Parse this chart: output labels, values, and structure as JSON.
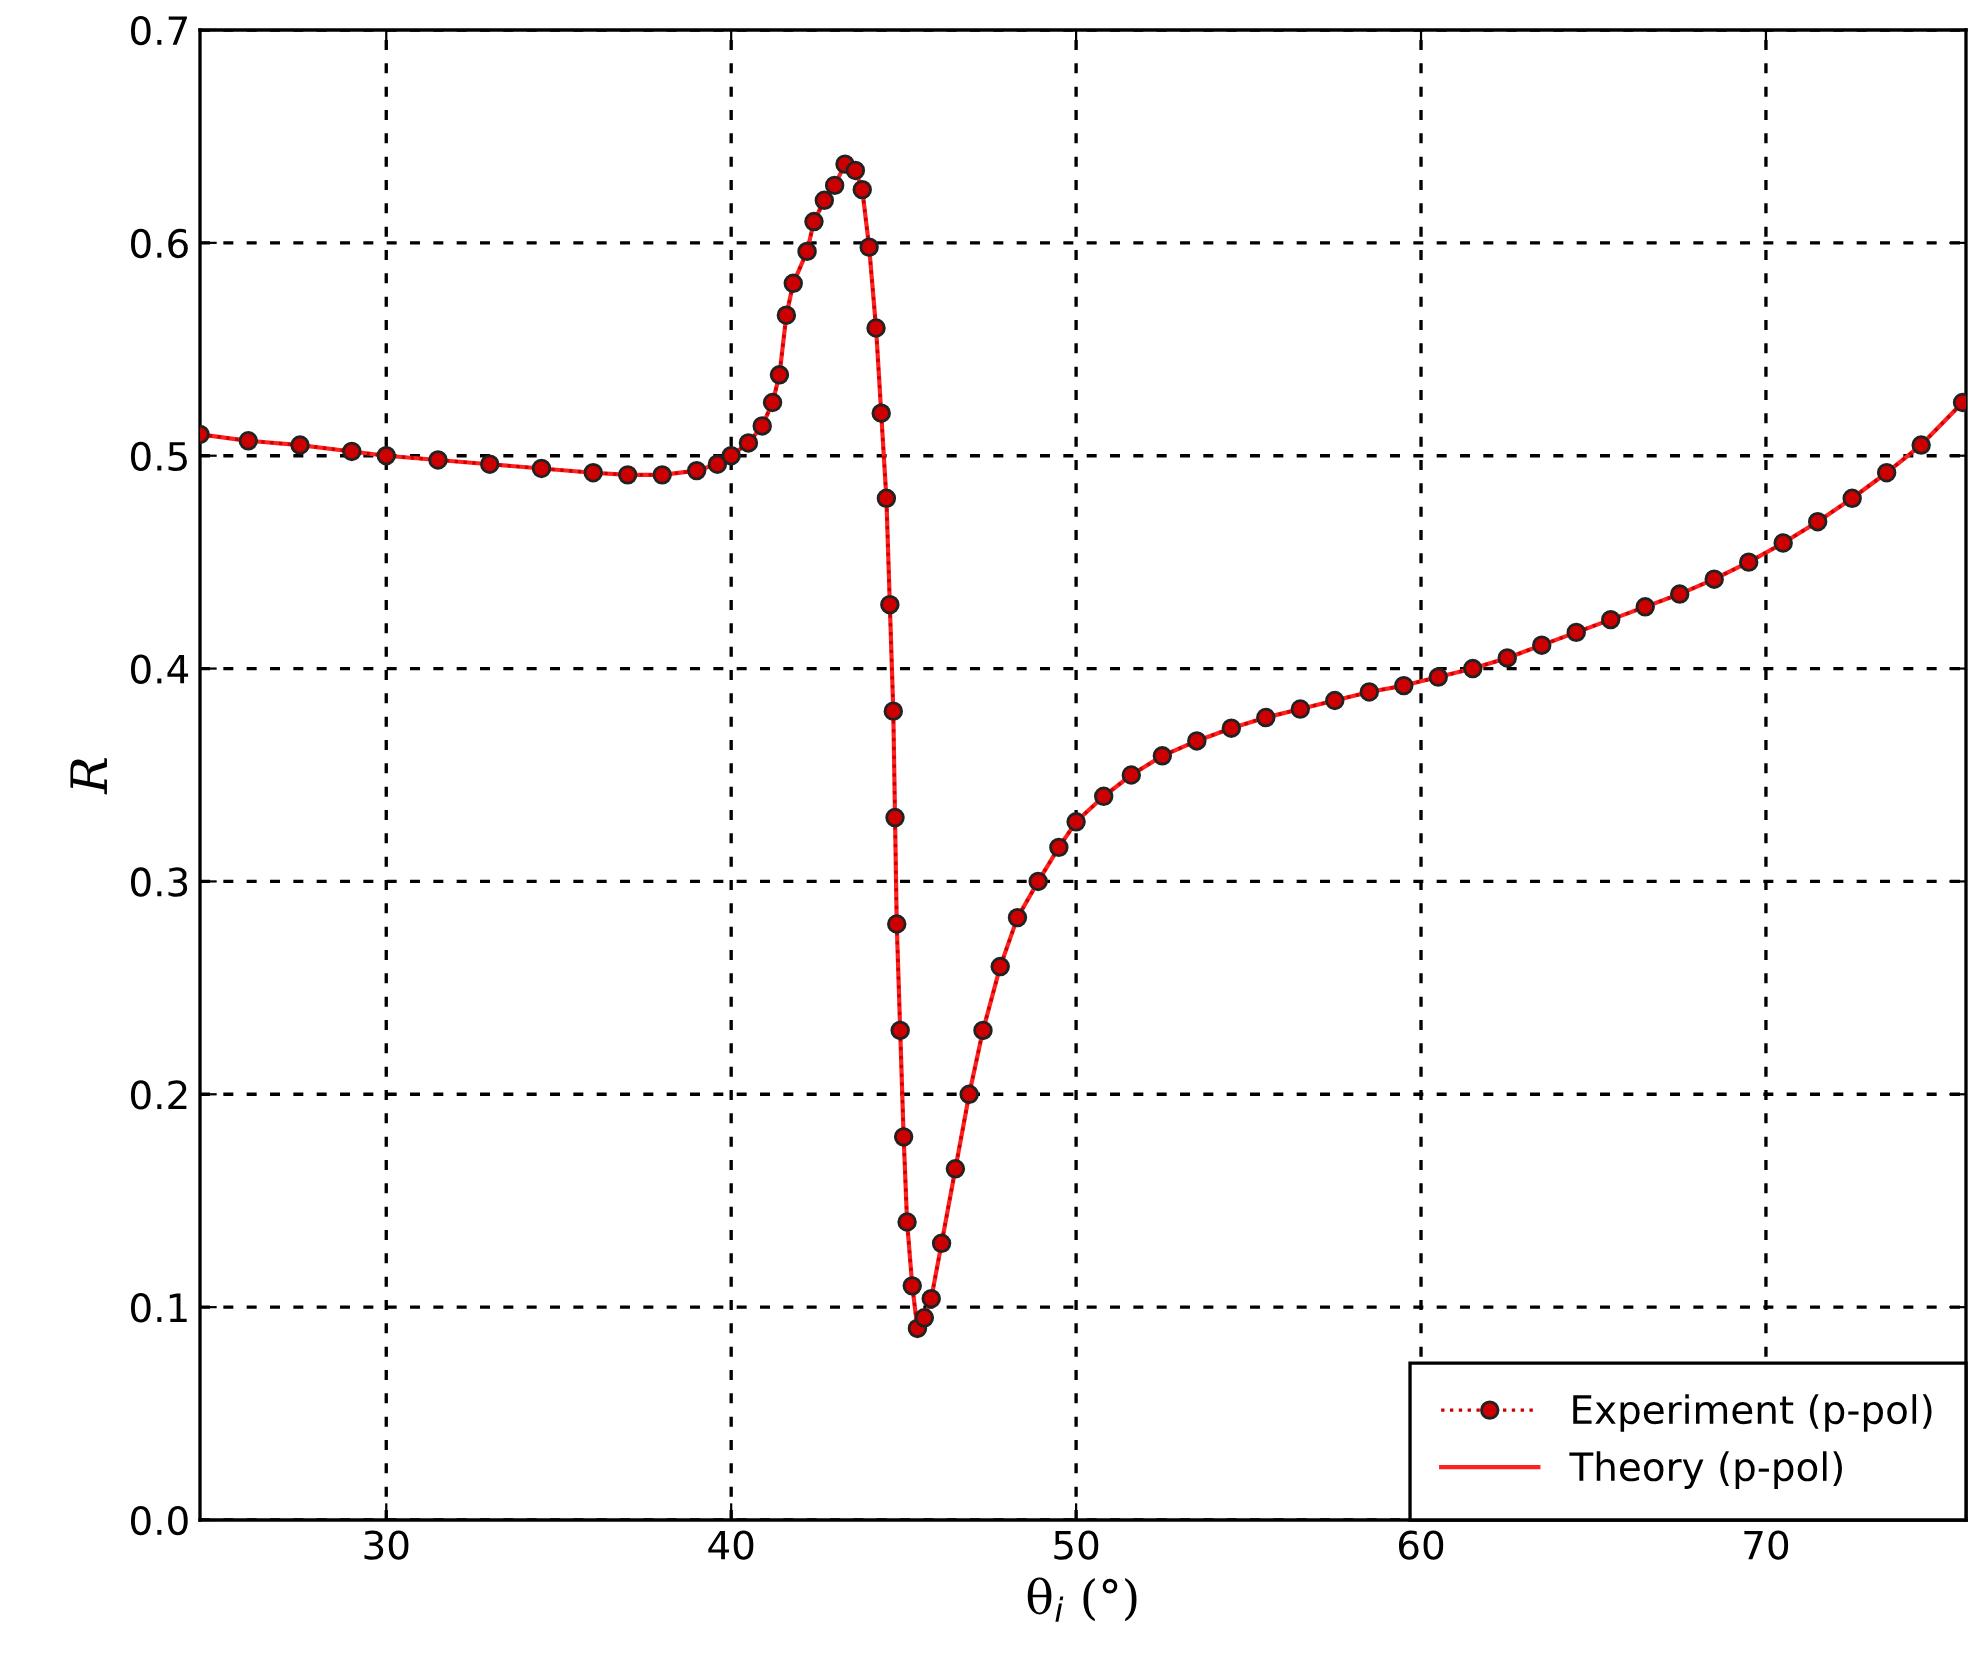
{
  "chart_data": {
    "type": "line",
    "xlabel": "θ$_{i}$ (°)",
    "ylabel": "R",
    "xlim": [
      24.6,
      75.8
    ],
    "xticks": [
      30,
      40,
      50,
      60,
      70
    ],
    "ylim": [
      0,
      0.7
    ],
    "yticks": [
      {
        "value": 0,
        "label": "0.0"
      },
      {
        "value": 0.1,
        "label": "0.1"
      },
      {
        "value": 0.2,
        "label": "0.2"
      },
      {
        "value": 0.3,
        "label": "0.3"
      },
      {
        "value": 0.4,
        "label": "0.4"
      },
      {
        "value": 0.5,
        "label": "0.5"
      },
      {
        "value": 0.6,
        "label": "0.6"
      },
      {
        "value": 0.7,
        "label": "0.7"
      }
    ],
    "grid": true,
    "legend": "bottom right",
    "x": [
      24.6,
      26,
      27.5,
      29,
      30,
      31.5,
      33,
      34.5,
      36,
      37,
      38,
      39,
      39.6,
      40,
      40.5,
      40.9,
      41.2,
      41.4,
      41.6,
      41.8,
      42.2,
      42.4,
      42.7,
      43.0,
      43.3,
      43.6,
      43.8,
      44.0,
      44.2,
      44.35,
      44.5,
      44.6,
      44.7,
      44.75,
      44.8,
      44.9,
      45.0,
      45.1,
      45.25,
      45.4,
      45.6,
      45.8,
      46.1,
      46.5,
      46.9,
      47.3,
      47.8,
      48.3,
      48.9,
      49.5,
      50,
      50.8,
      51.6,
      52.5,
      53.5,
      54.5,
      55.5,
      56.5,
      57.5,
      58.5,
      59.5,
      60.5,
      61.5,
      62.5,
      63.5,
      64.5,
      65.5,
      66.5,
      67.5,
      68.5,
      69.5,
      70.5,
      71.5,
      72.5,
      73.5,
      74.5,
      75.7
    ],
    "series": [
      {
        "name": "Experiment (p-pol)",
        "type": "line",
        "color": "#cc0000",
        "marker": "circle",
        "line_style": "dotted",
        "values": [
          0.51,
          0.507,
          0.505,
          0.502,
          0.5,
          0.498,
          0.496,
          0.494,
          0.492,
          0.491,
          0.491,
          0.493,
          0.496,
          0.5,
          0.506,
          0.514,
          0.525,
          0.538,
          0.566,
          0.581,
          0.596,
          0.61,
          0.62,
          0.627,
          0.637,
          0.634,
          0.625,
          0.598,
          0.56,
          0.52,
          0.48,
          0.43,
          0.38,
          0.33,
          0.28,
          0.23,
          0.18,
          0.14,
          0.11,
          0.09,
          0.095,
          0.104,
          0.13,
          0.165,
          0.2,
          0.23,
          0.26,
          0.283,
          0.3,
          0.316,
          0.328,
          0.34,
          0.35,
          0.359,
          0.366,
          0.372,
          0.377,
          0.381,
          0.385,
          0.389,
          0.392,
          0.396,
          0.4,
          0.405,
          0.411,
          0.417,
          0.423,
          0.429,
          0.435,
          0.442,
          0.45,
          0.459,
          0.469,
          0.48,
          0.492,
          0.505,
          0.525
        ]
      },
      {
        "name": "Theory (p-pol)",
        "type": "line",
        "color": "#ff2020",
        "line_style": "solid",
        "values": [
          0.51,
          0.507,
          0.505,
          0.502,
          0.5,
          0.498,
          0.496,
          0.494,
          0.492,
          0.491,
          0.491,
          0.493,
          0.496,
          0.5,
          0.506,
          0.514,
          0.525,
          0.538,
          0.566,
          0.581,
          0.596,
          0.61,
          0.62,
          0.627,
          0.637,
          0.634,
          0.625,
          0.598,
          0.56,
          0.52,
          0.48,
          0.43,
          0.38,
          0.33,
          0.28,
          0.23,
          0.18,
          0.14,
          0.11,
          0.09,
          0.095,
          0.104,
          0.13,
          0.165,
          0.2,
          0.23,
          0.26,
          0.283,
          0.3,
          0.316,
          0.328,
          0.34,
          0.35,
          0.359,
          0.366,
          0.372,
          0.377,
          0.381,
          0.385,
          0.389,
          0.392,
          0.396,
          0.4,
          0.405,
          0.411,
          0.417,
          0.423,
          0.429,
          0.435,
          0.442,
          0.45,
          0.459,
          0.469,
          0.48,
          0.492,
          0.505,
          0.525
        ]
      }
    ]
  }
}
